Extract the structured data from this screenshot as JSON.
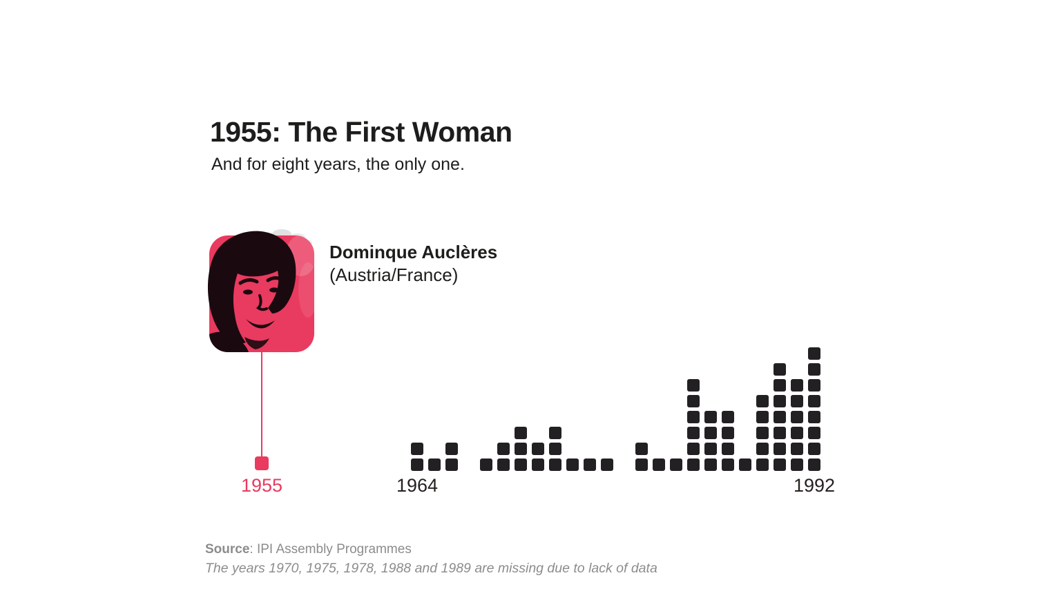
{
  "page": {
    "background": "#ffffff"
  },
  "header": {
    "title": "1955: The First Woman",
    "subtitle": "And for eight years, the only one."
  },
  "profile": {
    "name": "Dominque Auclères",
    "origin": "(Austria/France)",
    "portrait": "duotone-portrait-of-woman",
    "accent_color": "#E93A5F",
    "year_label": "1955"
  },
  "chart_data": {
    "type": "bar",
    "variant": "unit-square-columns, 1 square = 1 woman per year",
    "x": [
      "1964",
      "1965",
      "1966",
      "1967",
      "1968",
      "1969",
      "1971",
      "1972",
      "1973",
      "1974",
      "1976",
      "1977",
      "1979",
      "1980",
      "1981",
      "1982",
      "1983",
      "1984",
      "1985",
      "1986",
      "1987",
      "1990",
      "1991",
      "1992"
    ],
    "values": [
      2,
      1,
      2,
      0,
      1,
      2,
      3,
      2,
      3,
      1,
      1,
      1,
      0,
      2,
      1,
      1,
      6,
      4,
      4,
      1,
      5,
      7,
      6,
      8
    ],
    "x_tick_labels": [
      "1964",
      "1992"
    ],
    "missing_years": [
      "1970",
      "1975",
      "1978",
      "1988",
      "1989"
    ],
    "ylim": [
      0,
      8
    ],
    "square_color": "#232023",
    "label_color": "#26211f",
    "highlight": {
      "year": "1955",
      "value": 1,
      "color": "#E93A5F"
    },
    "legend": "none",
    "grid": "off"
  },
  "footer": {
    "source_label": "Source",
    "source_text": ": IPI Assembly Programmes",
    "note": "The years 1970, 1975, 1978, 1988 and 1989 are missing due to lack of data"
  }
}
